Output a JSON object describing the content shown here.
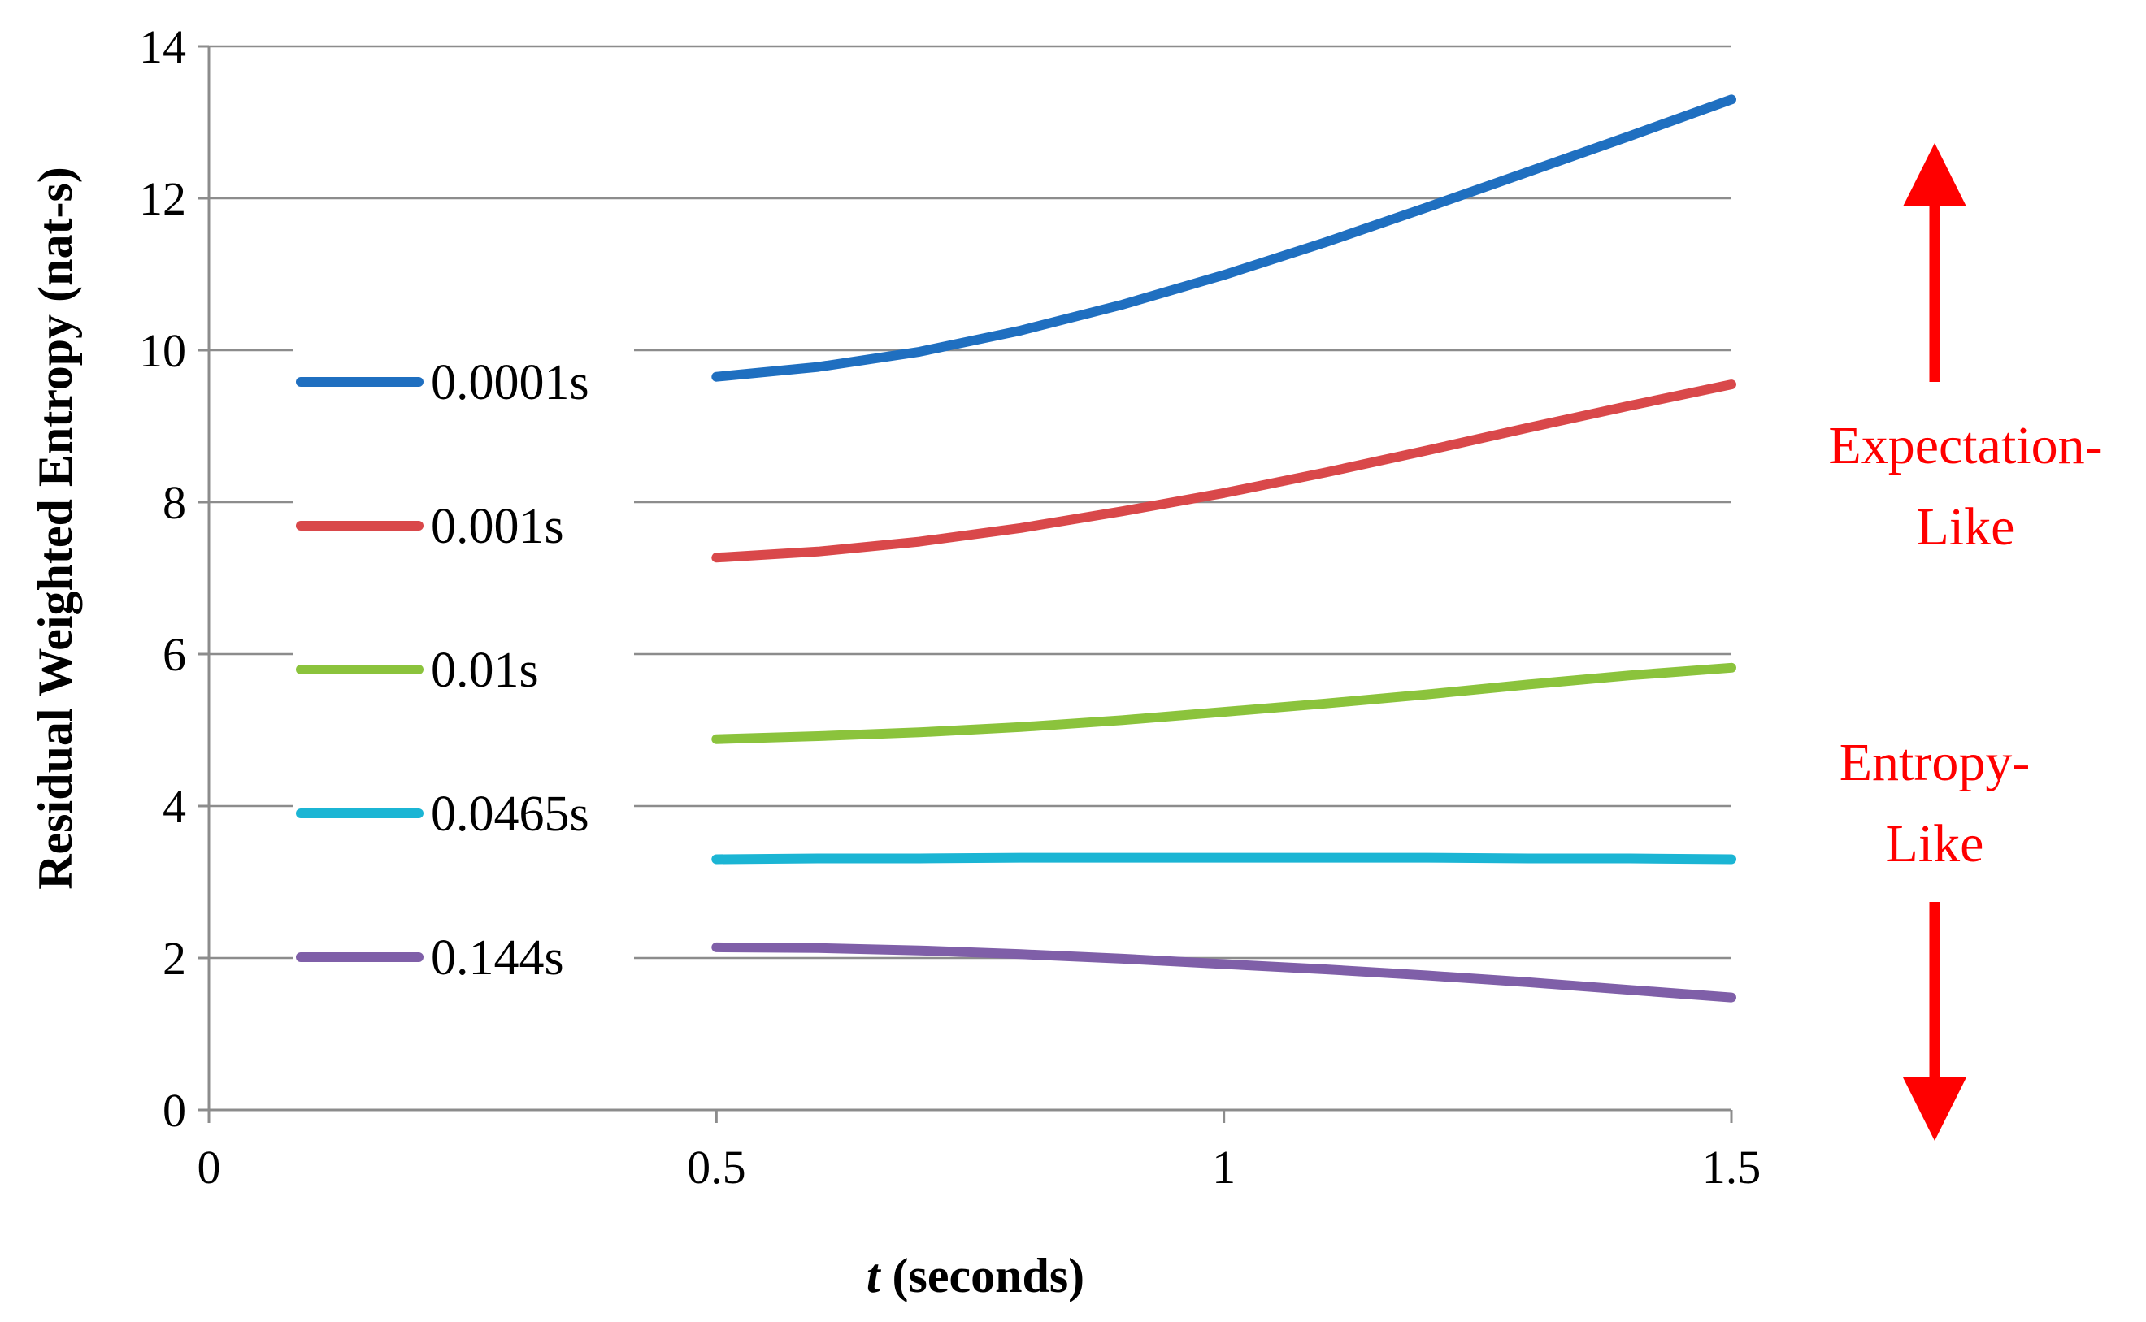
{
  "chart_data": {
    "type": "line",
    "title": "",
    "xlabel_italic": "t",
    "xlabel_rest": " (seconds)",
    "ylabel": "Residual Weighted Entropy (nat-s)",
    "xlim": [
      0,
      1.5
    ],
    "ylim": [
      0,
      14
    ],
    "xticks": [
      0,
      0.5,
      1,
      1.5
    ],
    "xtick_labels": [
      "0",
      "0.5",
      "1",
      "1.5"
    ],
    "yticks": [
      0,
      2,
      4,
      6,
      8,
      10,
      12,
      14
    ],
    "ytick_labels": [
      "0",
      "2",
      "4",
      "6",
      "8",
      "10",
      "12",
      "14"
    ],
    "grid": "horizontal",
    "legend_position": "left",
    "x": [
      0.5,
      0.6,
      0.7,
      0.8,
      0.9,
      1.0,
      1.1,
      1.2,
      1.3,
      1.4,
      1.5
    ],
    "series": [
      {
        "name": "0.0001s",
        "color": "#1F6FC0",
        "values": [
          9.65,
          9.78,
          9.98,
          10.26,
          10.6,
          10.99,
          11.42,
          11.88,
          12.35,
          12.82,
          13.3
        ]
      },
      {
        "name": "0.001s",
        "color": "#D9484A",
        "values": [
          7.27,
          7.35,
          7.48,
          7.66,
          7.88,
          8.12,
          8.39,
          8.68,
          8.98,
          9.27,
          9.55
        ]
      },
      {
        "name": "0.01s",
        "color": "#8BC33C",
        "values": [
          4.88,
          4.92,
          4.97,
          5.04,
          5.13,
          5.24,
          5.35,
          5.47,
          5.6,
          5.72,
          5.82
        ]
      },
      {
        "name": "0.0465s",
        "color": "#1BB5D4",
        "values": [
          3.3,
          3.31,
          3.31,
          3.32,
          3.32,
          3.32,
          3.32,
          3.32,
          3.31,
          3.31,
          3.3
        ]
      },
      {
        "name": "0.144s",
        "color": "#7F5FA8",
        "values": [
          2.14,
          2.13,
          2.1,
          2.05,
          1.99,
          1.92,
          1.85,
          1.77,
          1.68,
          1.58,
          1.48
        ]
      }
    ],
    "annotations": {
      "upper_line1": "Expectation-",
      "upper_line2": "Like",
      "lower_line1": "Entropy-",
      "lower_line2": "Like",
      "arrow_color": "#FF0000"
    }
  }
}
